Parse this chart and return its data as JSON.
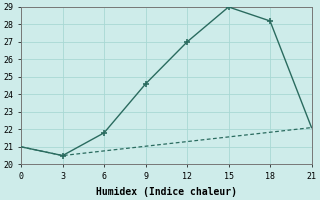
{
  "xlabel": "Humidex (Indice chaleur)",
  "line1_x": [
    0,
    3,
    6,
    9,
    12,
    15,
    18,
    21
  ],
  "line1_y": [
    21,
    20.5,
    21.8,
    24.6,
    27.0,
    29.0,
    28.2,
    22.1
  ],
  "line2_x": [
    0,
    3,
    21
  ],
  "line2_y": [
    21,
    20.5,
    22.1
  ],
  "color": "#2a6b5f",
  "bg_color": "#ceecea",
  "grid_color": "#a8d8d4",
  "xlim": [
    0,
    21
  ],
  "ylim": [
    20,
    29
  ],
  "xticks": [
    0,
    3,
    6,
    9,
    12,
    15,
    18,
    21
  ],
  "yticks": [
    20,
    21,
    22,
    23,
    24,
    25,
    26,
    27,
    28,
    29
  ],
  "xlabel_fontsize": 7,
  "tick_fontsize": 6
}
